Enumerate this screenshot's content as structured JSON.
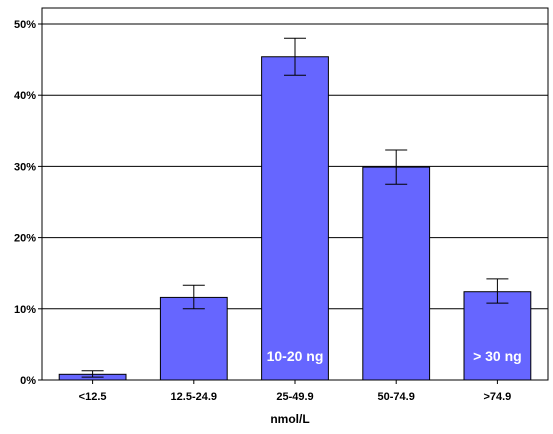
{
  "chart_data": {
    "type": "bar",
    "title": "",
    "xlabel": "nmol/L",
    "ylabel": "",
    "categories": [
      "<12.5",
      "12.5-24.9",
      "25-49.9",
      "50-74.9",
      ">74.9"
    ],
    "values": [
      0.8,
      11.6,
      45.4,
      29.9,
      12.4
    ],
    "error_low": [
      0.4,
      10.0,
      42.8,
      27.5,
      10.8
    ],
    "error_high": [
      1.3,
      13.3,
      48.0,
      32.3,
      14.2
    ],
    "unit": "%",
    "ylim": [
      0,
      50
    ],
    "yticks": [
      "0%",
      "10%",
      "20%",
      "30%",
      "40%",
      "50%"
    ],
    "grid": true,
    "annotations": [
      {
        "category": "25-49.9",
        "text": "10-20 ng"
      },
      {
        "category": ">74.9",
        "text": "> 30 ng"
      }
    ],
    "colors": {
      "bar_fill": "#6666FF",
      "bar_stroke": "#000000",
      "grid": "#000000",
      "annotation_text": "#ffffff"
    }
  }
}
